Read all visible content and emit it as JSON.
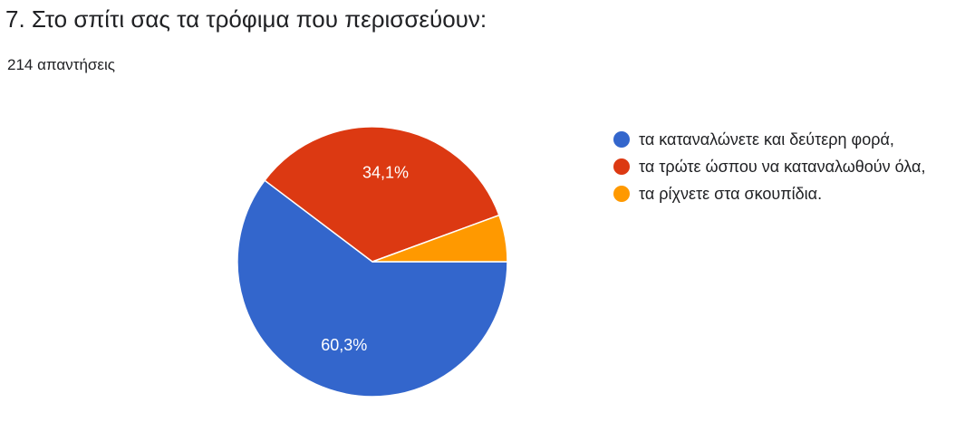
{
  "header": {
    "title": "7. Στο σπίτι σας τα τρόφιμα που περισσεύουν:",
    "responses": "214 απαντήσεις"
  },
  "chart_data": {
    "type": "pie",
    "categories": [
      "τα καταναλώνετε και δεύτερη φορά,",
      "τα τρώτε ώσπου να καταναλωθούν όλα,",
      "τα ρίχνετε στα σκουπίδια."
    ],
    "values": [
      60.3,
      34.1,
      5.6
    ],
    "value_labels": [
      "60,3%",
      "34,1%",
      ""
    ],
    "colors": [
      "#3366cc",
      "#dc3912",
      "#ff9900"
    ],
    "legend_position": "right"
  }
}
